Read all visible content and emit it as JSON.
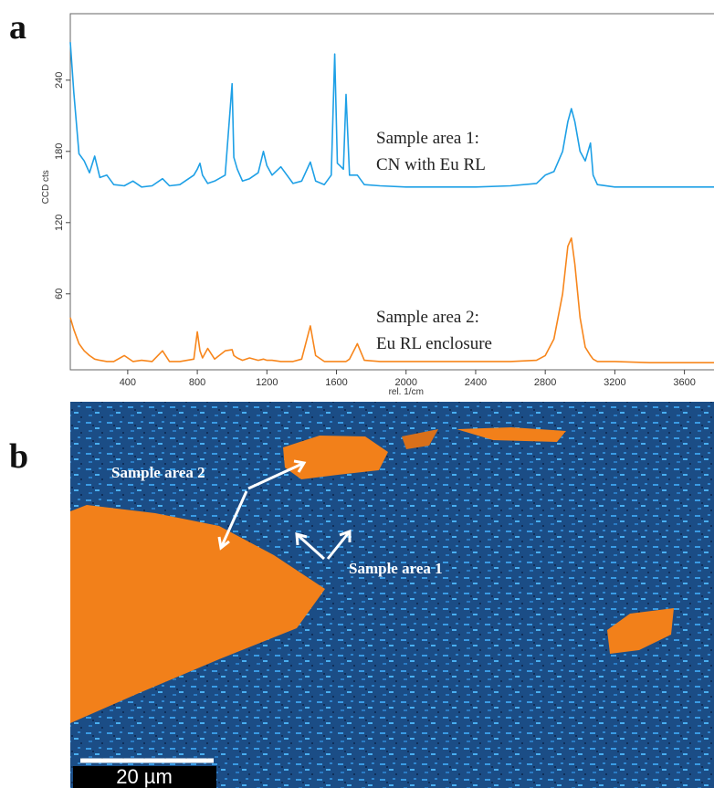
{
  "panel_labels": [
    "a",
    "b"
  ],
  "chart_data": {
    "type": "line",
    "x_label": "rel. 1/cm",
    "y_label": "CCD cts",
    "annotations": [
      "Sample area 1:",
      "CN with Eu RL",
      "Sample area 2:",
      "Eu RL enclosure"
    ],
    "x": [
      70,
      90,
      120,
      150,
      180,
      210,
      240,
      280,
      320,
      380,
      430,
      480,
      540,
      600,
      640,
      700,
      780,
      800,
      815,
      830,
      860,
      900,
      960,
      1000,
      1010,
      1030,
      1060,
      1100,
      1150,
      1180,
      1200,
      1230,
      1280,
      1350,
      1400,
      1450,
      1480,
      1530,
      1570,
      1590,
      1605,
      1620,
      1640,
      1655,
      1675,
      1720,
      1760,
      1850,
      2000,
      2200,
      2400,
      2600,
      2750,
      2800,
      2850,
      2900,
      2930,
      2950,
      2970,
      3000,
      3030,
      3060,
      3075,
      3100,
      3200,
      3400,
      3600,
      3770
    ],
    "series": [
      {
        "name": "Sample area 1",
        "color": "#1ea0e6",
        "values": [
          272,
          230,
          178,
          172,
          162,
          176,
          158,
          160,
          152,
          151,
          155,
          150,
          151,
          157,
          151,
          152,
          160,
          165,
          170,
          160,
          153,
          155,
          160,
          237,
          175,
          165,
          155,
          157,
          162,
          180,
          168,
          160,
          167,
          153,
          155,
          171,
          155,
          152,
          160,
          262,
          170,
          168,
          165,
          228,
          160,
          160,
          152,
          151,
          150,
          150,
          150,
          151,
          153,
          160,
          163,
          180,
          205,
          216,
          205,
          180,
          172,
          187,
          160,
          152,
          150,
          150,
          150,
          150
        ]
      },
      {
        "name": "Sample area 2",
        "color": "#f7861c",
        "values": [
          40,
          30,
          18,
          12,
          8,
          5,
          4,
          3,
          3,
          8,
          3,
          4,
          3,
          12,
          3,
          3,
          5,
          28,
          12,
          6,
          14,
          5,
          12,
          13,
          8,
          6,
          4,
          6,
          4,
          5,
          4,
          4,
          3,
          3,
          5,
          33,
          8,
          3,
          3,
          3,
          3,
          3,
          3,
          3,
          5,
          18,
          4,
          3,
          3,
          3,
          3,
          3,
          4,
          8,
          22,
          60,
          100,
          107,
          85,
          40,
          15,
          8,
          5,
          3,
          3,
          2,
          2,
          2
        ]
      }
    ],
    "xlim": [
      70,
      3770
    ],
    "xticks": [
      400,
      800,
      1200,
      1600,
      2000,
      2400,
      2800,
      3200,
      3600
    ],
    "ylim": [
      -4,
      296
    ],
    "yticks": [
      60,
      120,
      180,
      240
    ]
  },
  "map": {
    "labels": [
      "Sample area 2",
      "Sample area 1"
    ],
    "scale_bar": "20 µm"
  }
}
